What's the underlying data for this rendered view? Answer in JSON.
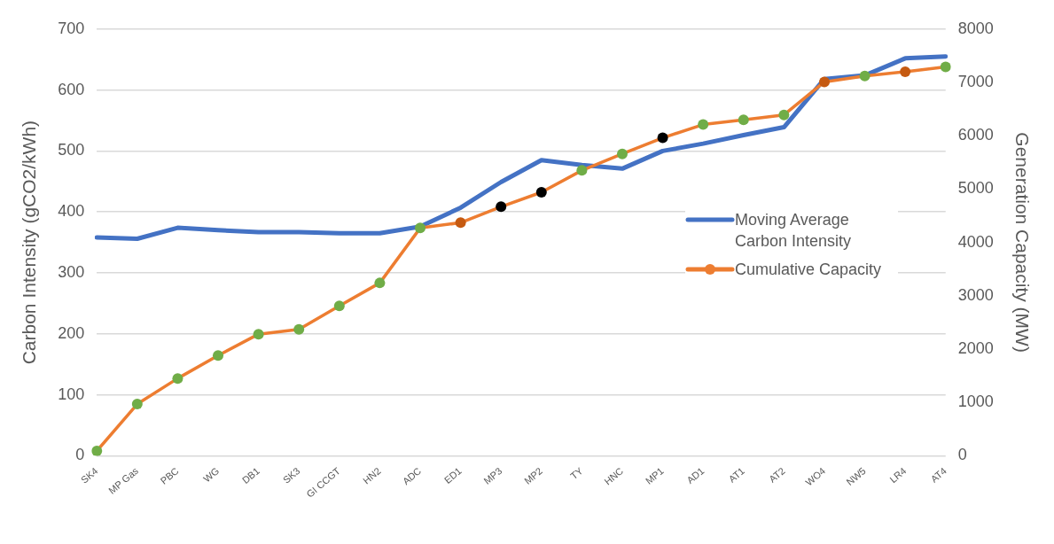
{
  "chart_data": {
    "type": "line",
    "ylabel": "Carbon Intensity (gCO2/kWh)",
    "y2label": "Generation Capacity (MW)",
    "categories": [
      "SK4",
      "MP Gas",
      "PBC",
      "WG",
      "DB1",
      "SK3",
      "GI CCGT",
      "HN2",
      "ADC",
      "ED1",
      "MP3",
      "MP2",
      "TY",
      "HNC",
      "MP1",
      "AD1",
      "AT1",
      "AT2",
      "WO4",
      "NW5",
      "LR4",
      "AT4"
    ],
    "series": [
      {
        "name": "Moving Average Carbon Intensity",
        "color": "#4472c4",
        "marker": "none",
        "values": [
          358,
          356,
          374,
          370,
          367,
          367,
          365,
          365,
          376,
          407,
          449,
          485,
          477,
          471,
          500,
          512,
          526,
          539,
          618,
          624,
          652,
          655
        ]
      },
      {
        "name": "Cumulative Capacity",
        "color": "#ed7d31",
        "marker": "circle",
        "axis": "y2",
        "colors": [
          "#70ad47",
          "#70ad47",
          "#70ad47",
          "#70ad47",
          "#70ad47",
          "#70ad47",
          "#70ad47",
          "#70ad47",
          "#70ad47",
          "#c55a11",
          "#000000",
          "#000000",
          "#70ad47",
          "#70ad47",
          "#000000",
          "#70ad47",
          "#70ad47",
          "#70ad47",
          "#c55a11",
          "#70ad47",
          "#c55a11",
          "#70ad47"
        ],
        "values": [
          90,
          970,
          1450,
          1880,
          2280,
          2370,
          2810,
          3240,
          4270,
          4370,
          4670,
          4940,
          5350,
          5660,
          5960,
          6210,
          6300,
          6390,
          7010,
          7120,
          7200,
          7290
        ]
      }
    ],
    "ylim": [
      0,
      700
    ],
    "yticks": [
      0,
      100,
      200,
      300,
      400,
      500,
      600,
      700
    ],
    "y2lim": [
      0,
      8000
    ],
    "y2ticks": [
      0,
      1000,
      2000,
      3000,
      4000,
      5000,
      6000,
      7000,
      8000
    ],
    "grid": "y",
    "legend": "right"
  }
}
